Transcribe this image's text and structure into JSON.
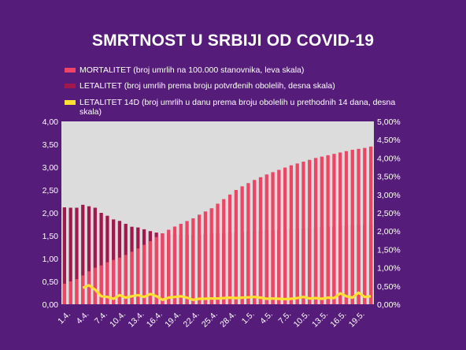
{
  "colors": {
    "background": "#561c7a",
    "plot_area": "#dcdcdc",
    "mortalitet": "#ee4566",
    "letalitet": "#a3184c",
    "letalitet14d": "#ffe033"
  },
  "chart_data": {
    "type": "bar",
    "title": "SMRTNOST U SRBIJI OD COVID-19",
    "legend_placement": "top",
    "grid": false,
    "x_ticks": [
      "1.4.",
      "4.4.",
      "7.4.",
      "10.4.",
      "13.4.",
      "16.4.",
      "19.4.",
      "22.4.",
      "25.4.",
      "28.4.",
      "1.5.",
      "4.5.",
      "7.5.",
      "10.5.",
      "13.5.",
      "16.5.",
      "19.5."
    ],
    "x_range": [
      "1.4.",
      "21.5."
    ],
    "left_axis": {
      "ylim": [
        0,
        4
      ],
      "ticks": [
        "0,00",
        "0,50",
        "1,00",
        "1,50",
        "2,00",
        "2,50",
        "3,00",
        "3,50",
        "4,00"
      ]
    },
    "right_axis": {
      "ylim": [
        0,
        5
      ],
      "ticks": [
        "0,00%",
        "0,50%",
        "1,00%",
        "1,50%",
        "2,00%",
        "2,50%",
        "3,00%",
        "3,50%",
        "4,00%",
        "4,50%",
        "5,00%"
      ]
    },
    "series": [
      {
        "name": "MORTALITET (broj umrlih na 100.000 stanovnika, leva skala)",
        "type": "bar",
        "axis": "left",
        "color": "#ee4566",
        "values": [
          0.45,
          0.5,
          0.55,
          0.63,
          0.72,
          0.8,
          0.85,
          0.92,
          0.97,
          1.02,
          1.08,
          1.15,
          1.22,
          1.3,
          1.38,
          1.47,
          1.55,
          1.63,
          1.7,
          1.76,
          1.82,
          1.88,
          1.96,
          2.03,
          2.1,
          2.2,
          2.3,
          2.4,
          2.5,
          2.58,
          2.65,
          2.72,
          2.78,
          2.84,
          2.89,
          2.94,
          2.99,
          3.04,
          3.08,
          3.12,
          3.16,
          3.2,
          3.23,
          3.26,
          3.29,
          3.32,
          3.35,
          3.38,
          3.4,
          3.42,
          3.45
        ]
      },
      {
        "name": "LETALITET (broj umrlih prema broju potvrđenih obolelih, desna skala)",
        "type": "bar",
        "axis": "right",
        "color": "#a3184c",
        "values": [
          2.65,
          2.64,
          2.64,
          2.72,
          2.68,
          2.64,
          2.5,
          2.42,
          2.32,
          2.28,
          2.2,
          2.12,
          2.1,
          2.05,
          2.0,
          1.96,
          1.94,
          1.92,
          1.9,
          1.9,
          1.9,
          1.9,
          1.91,
          1.92,
          1.93,
          1.94,
          1.95,
          1.96,
          1.97,
          1.98,
          1.99,
          2.0,
          2.01,
          2.02,
          2.03,
          2.04,
          2.05,
          2.06,
          2.07,
          2.08,
          2.09,
          2.1,
          2.11,
          2.12,
          2.13,
          2.14,
          2.15,
          2.16,
          2.17,
          2.18,
          2.18
        ]
      },
      {
        "name": "LETALITET 14D (broj umrlih u danu prema broju obolelih u prethodnih 14 dana, desna skala)",
        "type": "line",
        "axis": "right",
        "color": "#ffe033",
        "start_index": 3,
        "values": [
          0.45,
          0.52,
          0.4,
          0.22,
          0.2,
          0.15,
          0.25,
          0.18,
          0.22,
          0.25,
          0.2,
          0.28,
          0.22,
          0.12,
          0.18,
          0.2,
          0.22,
          0.18,
          0.12,
          0.15,
          0.15,
          0.16,
          0.16,
          0.17,
          0.18,
          0.17,
          0.18,
          0.19,
          0.2,
          0.18,
          0.15,
          0.16,
          0.15,
          0.14,
          0.15,
          0.17,
          0.2,
          0.16,
          0.17,
          0.15,
          0.18,
          0.17,
          0.3,
          0.22,
          0.18,
          0.32,
          0.2,
          0.22
        ]
      }
    ]
  }
}
